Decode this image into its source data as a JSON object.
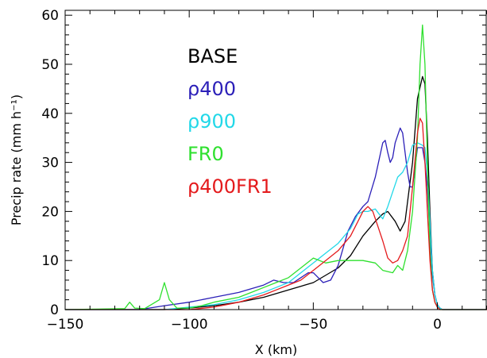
{
  "chart_data": {
    "type": "line",
    "xlabel": "X (km)",
    "ylabel": "Precip rate (mm h⁻¹)",
    "xlim": [
      -150,
      20
    ],
    "ylim": [
      0,
      61
    ],
    "xticks": [
      -150,
      -100,
      -50,
      0
    ],
    "xtick_labels": [
      "−150",
      "−100",
      "−50",
      "0"
    ],
    "yticks": [
      0,
      10,
      20,
      30,
      40,
      50,
      60
    ],
    "ytick_labels": [
      "0",
      "10",
      "20",
      "30",
      "40",
      "50",
      "60"
    ],
    "grid": false,
    "legend_position": "top-left",
    "series": [
      {
        "name": "BASE",
        "color": "#000000",
        "x": [
          -150,
          -110,
          -100,
          -90,
          -80,
          -70,
          -60,
          -50,
          -40,
          -35,
          -30,
          -25,
          -22,
          -20,
          -17,
          -15,
          -13,
          -10,
          -8,
          -6,
          -5,
          -4,
          -3,
          -2,
          -1,
          0,
          1,
          2,
          20
        ],
        "y": [
          0,
          0,
          0.3,
          0.8,
          1.5,
          2.5,
          4,
          5.5,
          8.5,
          11,
          15,
          18,
          19.5,
          20,
          18,
          16,
          18,
          30,
          43,
          47.5,
          46,
          35,
          20,
          8,
          3,
          1,
          0.3,
          0,
          0
        ]
      },
      {
        "name": "ρ400",
        "color": "#2b1fb8",
        "x": [
          -150,
          -120,
          -110,
          -100,
          -90,
          -80,
          -70,
          -66,
          -62,
          -58,
          -55,
          -52,
          -50,
          -48,
          -46,
          -43,
          -40,
          -36,
          -33,
          -30,
          -28,
          -25,
          -22,
          -21,
          -20,
          -19,
          -18,
          -17,
          -15,
          -14,
          -12,
          -11,
          -10,
          -8,
          -6,
          -5,
          -4,
          -3,
          -2,
          -1,
          0,
          1,
          2,
          20
        ],
        "y": [
          0,
          0,
          0.8,
          1.5,
          2.5,
          3.5,
          5,
          6,
          5.5,
          5.5,
          6.5,
          7.5,
          7.5,
          6.5,
          5.5,
          6,
          9,
          16,
          19,
          21,
          22,
          27,
          34,
          34.5,
          32,
          30,
          31,
          34,
          37,
          36,
          28,
          25,
          25,
          33,
          33,
          30,
          25,
          15,
          7,
          3,
          1,
          0.3,
          0,
          0
        ]
      },
      {
        "name": "ρ900",
        "color": "#22d8e8",
        "x": [
          -150,
          -110,
          -100,
          -90,
          -80,
          -70,
          -65,
          -60,
          -55,
          -50,
          -45,
          -40,
          -35,
          -32,
          -30,
          -28,
          -25,
          -22,
          -20,
          -18,
          -16,
          -14,
          -12,
          -10,
          -8,
          -6,
          -5,
          -4,
          -3,
          -2,
          -1,
          0,
          1,
          2,
          20
        ],
        "y": [
          0,
          0,
          0.5,
          1,
          2,
          3.5,
          4.5,
          5.5,
          7.5,
          9.5,
          11.5,
          13.5,
          16.5,
          19.5,
          20,
          20,
          20.5,
          18.5,
          21,
          24,
          27,
          28,
          30,
          33.5,
          34,
          33.5,
          33,
          28,
          18,
          8,
          3,
          1,
          0.3,
          0,
          0
        ]
      },
      {
        "name": "FR0",
        "color": "#2ee02e",
        "x": [
          -150,
          -126,
          -124,
          -122,
          -118,
          -112,
          -110,
          -108,
          -105,
          -100,
          -95,
          -90,
          -80,
          -75,
          -70,
          -65,
          -60,
          -55,
          -50,
          -45,
          -40,
          -35,
          -30,
          -25,
          -22,
          -18,
          -16,
          -14,
          -12,
          -10,
          -8,
          -7,
          -6,
          -5,
          -4,
          -3,
          -2,
          -1,
          0,
          1,
          20
        ],
        "y": [
          0,
          0.2,
          1.5,
          0.3,
          0.2,
          2,
          5.5,
          2,
          0.3,
          0.3,
          0.8,
          1.5,
          2.5,
          3.5,
          4.5,
          5.5,
          6.5,
          8.5,
          10.5,
          9.5,
          10,
          10,
          10,
          9.5,
          8,
          7.5,
          9,
          8,
          12,
          20,
          35,
          50,
          58,
          50,
          30,
          12,
          4,
          1.5,
          0.5,
          0,
          0
        ]
      },
      {
        "name": "ρ400FR1",
        "color": "#e41a1c",
        "x": [
          -150,
          -100,
          -90,
          -80,
          -70,
          -65,
          -60,
          -55,
          -50,
          -45,
          -40,
          -35,
          -32,
          -30,
          -28,
          -26,
          -24,
          -22,
          -20,
          -18,
          -16,
          -14,
          -12,
          -10,
          -8,
          -7,
          -6,
          -5,
          -4,
          -3,
          -2,
          -1,
          0,
          1,
          20
        ],
        "y": [
          0,
          0,
          0.5,
          1.5,
          3,
          4,
          5,
          6,
          8,
          10,
          12,
          15,
          18,
          20,
          21,
          20,
          17,
          14,
          10.5,
          9.5,
          10,
          12,
          15,
          25,
          36,
          39,
          38,
          30,
          20,
          10,
          4,
          1.5,
          0.5,
          0,
          0
        ]
      }
    ]
  }
}
